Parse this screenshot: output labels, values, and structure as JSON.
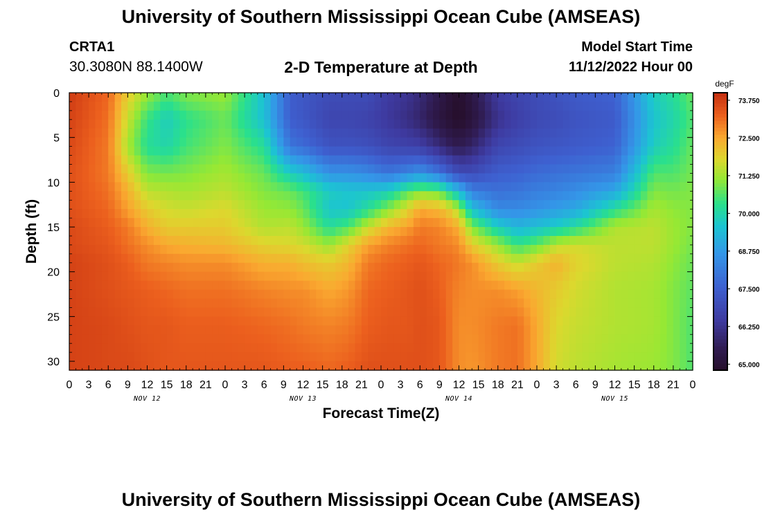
{
  "header": {
    "title": "University of Southern Mississippi Ocean Cube (AMSEAS)",
    "station_id": "CRTA1",
    "station_coords": "30.3080N  88.1400W",
    "subtitle": "2-D Temperature at Depth",
    "model_start_label": "Model Start Time",
    "model_start_value": "11/12/2022 Hour 00"
  },
  "footer": {
    "title": "University of Southern Mississippi Ocean Cube (AMSEAS)"
  },
  "chart_data": {
    "type": "heatmap",
    "title": "2-D Temperature at Depth",
    "xlabel": "Forecast Time(Z)",
    "ylabel": "Depth (ft)",
    "xlim": [
      0,
      96
    ],
    "ylim": [
      31,
      0
    ],
    "x_ticks": [
      0,
      3,
      6,
      9,
      12,
      15,
      18,
      21,
      24,
      27,
      30,
      33,
      36,
      39,
      42,
      45,
      48,
      51,
      54,
      57,
      60,
      63,
      66,
      69,
      72,
      75,
      78,
      81,
      84,
      87,
      90,
      93,
      96
    ],
    "x_tick_labels": [
      "0",
      "3",
      "6",
      "9",
      "12",
      "15",
      "18",
      "21",
      "0",
      "3",
      "6",
      "9",
      "12",
      "15",
      "18",
      "21",
      "0",
      "3",
      "6",
      "9",
      "12",
      "15",
      "18",
      "21",
      "0",
      "3",
      "6",
      "9",
      "12",
      "15",
      "18",
      "21",
      "0"
    ],
    "y_ticks": [
      0,
      5,
      10,
      15,
      20,
      25,
      30
    ],
    "y_tick_labels": [
      "0",
      "5",
      "10",
      "15",
      "20",
      "25",
      "30"
    ],
    "date_labels": [
      {
        "hour": 12,
        "label": "NOV 12"
      },
      {
        "hour": 36,
        "label": "NOV 13"
      },
      {
        "hour": 60,
        "label": "NOV 14"
      },
      {
        "hour": 84,
        "label": "NOV 15"
      }
    ],
    "colorbar": {
      "units": "degF",
      "min": 64.8,
      "max": 74.0,
      "ticks": [
        65.0,
        66.25,
        67.5,
        68.75,
        70.0,
        71.25,
        72.5,
        73.75
      ],
      "tick_labels": [
        "65.000",
        "66.250",
        "67.500",
        "68.750",
        "70.000",
        "71.250",
        "72.500",
        "73.750"
      ]
    },
    "field": {
      "times": [
        0,
        6,
        9,
        12,
        15,
        18,
        24,
        30,
        34,
        36,
        40,
        43,
        46,
        49,
        52,
        54,
        57,
        59,
        60,
        62,
        66,
        69,
        72,
        75,
        78,
        84,
        90,
        93,
        96
      ],
      "depths": [
        0,
        3,
        6,
        9,
        11,
        13,
        15,
        17,
        19,
        22,
        26,
        31
      ],
      "temps": [
        [
          73.8,
          73.7,
          73.6,
          73.5,
          73.5,
          73.5,
          73.6,
          73.6,
          73.7,
          73.7,
          73.7,
          73.7
        ],
        [
          73.2,
          73.1,
          73.0,
          73.0,
          73.1,
          73.2,
          73.3,
          73.4,
          73.5,
          73.5,
          73.6,
          73.6
        ],
        [
          72.0,
          71.6,
          71.3,
          72.0,
          72.4,
          72.6,
          73.0,
          73.1,
          73.3,
          73.4,
          73.5,
          73.6
        ],
        [
          71.2,
          70.4,
          70.2,
          71.0,
          71.5,
          72.0,
          72.4,
          72.8,
          73.0,
          73.3,
          73.4,
          73.5
        ],
        [
          70.6,
          69.8,
          70.0,
          70.9,
          71.4,
          71.7,
          72.0,
          72.5,
          72.9,
          73.2,
          73.4,
          73.4
        ],
        [
          71.0,
          70.3,
          70.5,
          71.0,
          71.3,
          71.6,
          72.0,
          72.4,
          72.8,
          73.1,
          73.3,
          73.4
        ],
        [
          71.2,
          70.8,
          71.0,
          71.3,
          71.5,
          71.8,
          72.0,
          72.3,
          72.8,
          73.1,
          73.3,
          73.4
        ],
        [
          69.5,
          69.5,
          70.2,
          70.8,
          71.0,
          71.2,
          71.4,
          71.9,
          72.4,
          72.9,
          73.2,
          73.4
        ],
        [
          67.5,
          67.5,
          68.0,
          69.8,
          70.8,
          71.1,
          71.5,
          71.8,
          72.4,
          72.8,
          73.1,
          73.3
        ],
        [
          67.3,
          67.3,
          67.8,
          69.5,
          70.5,
          70.8,
          71.2,
          71.7,
          72.2,
          72.8,
          73.0,
          73.3
        ],
        [
          67.0,
          66.8,
          67.2,
          68.6,
          69.8,
          69.6,
          70.2,
          71.2,
          72.0,
          72.5,
          72.9,
          73.2
        ],
        [
          67.0,
          66.8,
          67.2,
          68.6,
          69.6,
          69.6,
          70.6,
          71.9,
          72.3,
          72.7,
          73.0,
          73.3
        ],
        [
          67.0,
          66.7,
          67.1,
          68.4,
          69.6,
          70.2,
          71.6,
          72.6,
          73.0,
          73.2,
          73.3,
          73.5
        ],
        [
          66.5,
          66.4,
          66.8,
          68.0,
          69.8,
          71.0,
          72.3,
          72.9,
          73.2,
          73.3,
          73.4,
          73.5
        ],
        [
          66.3,
          66.1,
          66.7,
          68.3,
          70.6,
          71.8,
          72.6,
          73.1,
          73.3,
          73.4,
          73.4,
          73.5
        ],
        [
          66.0,
          65.8,
          66.6,
          68.6,
          71.0,
          72.5,
          73.0,
          73.2,
          73.4,
          73.5,
          73.5,
          73.5
        ],
        [
          65.4,
          65.2,
          66.0,
          68.0,
          70.8,
          72.3,
          72.9,
          73.0,
          73.2,
          73.3,
          73.4,
          73.4
        ],
        [
          65.0,
          64.9,
          65.6,
          67.3,
          69.8,
          71.8,
          72.6,
          72.9,
          73.1,
          73.0,
          73.0,
          73.0
        ],
        [
          64.9,
          64.8,
          65.5,
          67.0,
          69.4,
          71.2,
          72.4,
          72.8,
          73.0,
          72.9,
          72.8,
          72.8
        ],
        [
          65.3,
          65.1,
          65.8,
          67.0,
          68.2,
          69.5,
          71.0,
          72.0,
          72.8,
          72.8,
          72.8,
          72.7
        ],
        [
          66.5,
          66.2,
          66.8,
          67.5,
          67.9,
          68.4,
          69.8,
          71.2,
          72.0,
          72.8,
          73.0,
          73.0
        ],
        [
          66.8,
          66.6,
          67.0,
          67.6,
          68.0,
          68.4,
          69.3,
          70.4,
          71.6,
          72.6,
          73.1,
          73.1
        ],
        [
          67.0,
          66.9,
          67.2,
          67.8,
          68.2,
          68.6,
          69.5,
          70.8,
          72.0,
          72.3,
          72.5,
          72.5
        ],
        [
          67.2,
          67.0,
          67.3,
          67.9,
          68.3,
          68.8,
          69.8,
          71.5,
          72.4,
          72.0,
          71.8,
          71.7
        ],
        [
          67.4,
          67.2,
          67.4,
          68.0,
          68.5,
          69.0,
          70.2,
          71.7,
          71.9,
          71.7,
          71.6,
          71.5
        ],
        [
          67.6,
          67.4,
          67.6,
          68.2,
          69.0,
          70.2,
          71.4,
          71.5,
          71.5,
          71.4,
          71.4,
          71.3
        ],
        [
          69.8,
          69.6,
          69.8,
          70.6,
          71.0,
          71.3,
          71.5,
          71.5,
          71.4,
          71.3,
          71.3,
          71.2
        ],
        [
          70.2,
          70.0,
          70.2,
          70.6,
          70.9,
          71.1,
          71.2,
          71.2,
          71.1,
          71.0,
          71.0,
          71.0
        ],
        [
          70.8,
          70.6,
          70.8,
          70.9,
          71.0,
          71.0,
          71.0,
          70.9,
          70.8,
          70.7,
          70.6,
          70.6
        ]
      ]
    }
  }
}
